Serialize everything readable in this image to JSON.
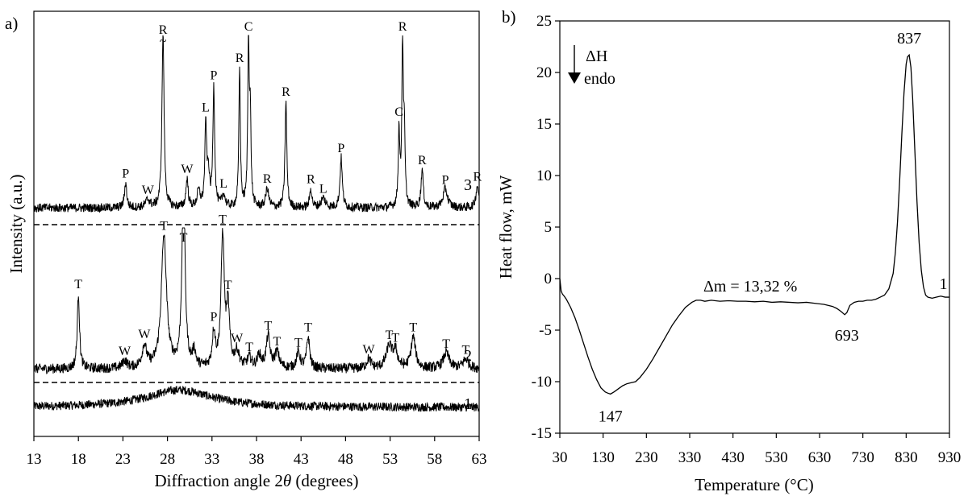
{
  "chart_data": [
    {
      "type": "line",
      "panel_label": "a)",
      "xlabel_prefix": "Diffraction angle 2",
      "xlabel_symbol": "θ",
      "xlabel_suffix": " (degrees)",
      "ylabel": "Intensity (a.u.)",
      "xlim": [
        13,
        63
      ],
      "xticks": [
        13,
        18,
        23,
        28,
        33,
        38,
        43,
        48,
        53,
        58,
        63
      ],
      "y_ticks_shown": false,
      "separators": "dashed",
      "break_marker": "~",
      "series": [
        {
          "name": "1",
          "offset": 0,
          "baseline": 0.5,
          "peaks": [
            [
              29.3,
              2.8,
              4.5
            ]
          ],
          "noise": 0.7
        },
        {
          "name": "2",
          "offset": 12,
          "baseline": 1.0,
          "peaks": [
            [
              18.0,
              12.0,
              0.15
            ],
            [
              23.2,
              1.2,
              0.3
            ],
            [
              25.4,
              3.5,
              0.3
            ],
            [
              27.6,
              21.0,
              0.35
            ],
            [
              29.8,
              31.0,
              0.2
            ],
            [
              31.0,
              2.5,
              0.2
            ],
            [
              33.2,
              5.5,
              0.2
            ],
            [
              34.2,
              21.0,
              0.22
            ],
            [
              34.8,
              9.0,
              0.2
            ],
            [
              35.8,
              2.5,
              0.3
            ],
            [
              37.2,
              1.5,
              0.3
            ],
            [
              38.3,
              2.0,
              0.25
            ],
            [
              39.3,
              5.0,
              0.25
            ],
            [
              40.3,
              2.5,
              0.3
            ],
            [
              42.7,
              2.5,
              0.25
            ],
            [
              43.8,
              5.0,
              0.2
            ],
            [
              50.6,
              1.5,
              0.3
            ],
            [
              52.9,
              3.5,
              0.4
            ],
            [
              53.6,
              2.5,
              0.3
            ],
            [
              55.6,
              5.0,
              0.3
            ],
            [
              59.3,
              2.5,
              0.4
            ],
            [
              61.5,
              1.5,
              0.4
            ]
          ],
          "noise": 0.8
        },
        {
          "name": "3",
          "offset": 27,
          "baseline": 1.0,
          "peaks": [
            [
              23.3,
              4.0,
              0.15
            ],
            [
              25.8,
              1.2,
              0.3
            ],
            [
              27.5,
              28.0,
              0.14
            ],
            [
              30.2,
              4.5,
              0.15
            ],
            [
              31.5,
              2.5,
              0.2
            ],
            [
              32.3,
              13.0,
              0.12
            ],
            [
              32.6,
              5.0,
              0.15
            ],
            [
              33.2,
              19.0,
              0.12
            ],
            [
              34.3,
              2.0,
              0.2
            ],
            [
              36.1,
              22.0,
              0.1
            ],
            [
              37.1,
              26.0,
              0.1
            ],
            [
              37.3,
              13.0,
              0.1
            ],
            [
              39.2,
              3.0,
              0.2
            ],
            [
              41.3,
              17.0,
              0.12
            ],
            [
              44.1,
              3.0,
              0.15
            ],
            [
              45.5,
              1.5,
              0.3
            ],
            [
              47.5,
              8.0,
              0.15
            ],
            [
              54.0,
              12.0,
              0.1
            ],
            [
              54.4,
              26.0,
              0.1
            ],
            [
              54.6,
              10.0,
              0.1
            ],
            [
              56.6,
              6.0,
              0.15
            ],
            [
              59.2,
              3.0,
              0.3
            ],
            [
              62.8,
              3.5,
              0.2
            ]
          ],
          "noise": 0.7
        }
      ],
      "peak_labels": [
        {
          "series": "3",
          "label": "P",
          "x": 23.3
        },
        {
          "series": "3",
          "label": "W",
          "x": 25.8
        },
        {
          "series": "3",
          "label": "R",
          "x": 27.5
        },
        {
          "series": "3",
          "label": "W",
          "x": 30.2
        },
        {
          "series": "3",
          "label": "L",
          "x": 32.3
        },
        {
          "series": "3",
          "label": "P",
          "x": 33.2
        },
        {
          "series": "3",
          "label": "L",
          "x": 34.3
        },
        {
          "series": "3",
          "label": "R",
          "x": 36.1
        },
        {
          "series": "3",
          "label": "C",
          "x": 37.1
        },
        {
          "series": "3",
          "label": "R",
          "x": 39.2
        },
        {
          "series": "3",
          "label": "R",
          "x": 41.3
        },
        {
          "series": "3",
          "label": "R",
          "x": 44.1
        },
        {
          "series": "3",
          "label": "L",
          "x": 45.5
        },
        {
          "series": "3",
          "label": "P",
          "x": 47.5
        },
        {
          "series": "3",
          "label": "C",
          "x": 54.0
        },
        {
          "series": "3",
          "label": "R",
          "x": 54.4
        },
        {
          "series": "3",
          "label": "R",
          "x": 56.6
        },
        {
          "series": "3",
          "label": "P",
          "x": 59.2
        },
        {
          "series": "3",
          "label": "R",
          "x": 62.8
        },
        {
          "series": "2",
          "label": "T",
          "x": 18.0
        },
        {
          "series": "2",
          "label": "W",
          "x": 23.2
        },
        {
          "series": "2",
          "label": "W",
          "x": 25.4
        },
        {
          "series": "2",
          "label": "T",
          "x": 27.6
        },
        {
          "series": "2",
          "label": "T",
          "x": 29.8
        },
        {
          "series": "2",
          "label": "P",
          "x": 33.2
        },
        {
          "series": "2",
          "label": "T",
          "x": 34.2
        },
        {
          "series": "2",
          "label": "T",
          "x": 34.8
        },
        {
          "series": "2",
          "label": "W",
          "x": 35.8
        },
        {
          "series": "2",
          "label": "T",
          "x": 37.2
        },
        {
          "series": "2",
          "label": "T",
          "x": 39.3
        },
        {
          "series": "2",
          "label": "T",
          "x": 40.3
        },
        {
          "series": "2",
          "label": "T",
          "x": 42.7
        },
        {
          "series": "2",
          "label": "T",
          "x": 43.8
        },
        {
          "series": "2",
          "label": "W",
          "x": 50.6
        },
        {
          "series": "2",
          "label": "T",
          "x": 52.9
        },
        {
          "series": "2",
          "label": "T",
          "x": 53.6
        },
        {
          "series": "2",
          "label": "T",
          "x": 55.6
        },
        {
          "series": "2",
          "label": "T",
          "x": 59.3
        },
        {
          "series": "2",
          "label": "T",
          "x": 61.5
        }
      ]
    },
    {
      "type": "line",
      "panel_label": "b)",
      "xlabel": "Temperature (°C)",
      "ylabel": "Heat flow, mW",
      "xlim": [
        30,
        930
      ],
      "ylim": [
        -15,
        25
      ],
      "xticks": [
        30,
        130,
        230,
        330,
        430,
        530,
        630,
        730,
        830,
        930
      ],
      "yticks": [
        -15,
        -10,
        -5,
        0,
        5,
        10,
        15,
        20,
        25
      ],
      "legend": {
        "symbol": "ΔH",
        "text": "endo",
        "placement": "top-left"
      },
      "series": [
        {
          "name": "1",
          "x": [
            30,
            33,
            36,
            40,
            45,
            55,
            65,
            75,
            85,
            95,
            105,
            115,
            125,
            135,
            140,
            147,
            155,
            165,
            175,
            185,
            195,
            205,
            215,
            230,
            245,
            260,
            275,
            290,
            305,
            320,
            335,
            345,
            355,
            365,
            380,
            400,
            420,
            440,
            460,
            480,
            500,
            520,
            540,
            560,
            580,
            600,
            620,
            640,
            660,
            670,
            680,
            688,
            693,
            700,
            710,
            720,
            730,
            740,
            750,
            760,
            770,
            780,
            790,
            800,
            805,
            810,
            815,
            820,
            825,
            830,
            833,
            837,
            841,
            845,
            850,
            855,
            860,
            865,
            870,
            875,
            880,
            890,
            900,
            910,
            920,
            930
          ],
          "y": [
            0.0,
            -1.2,
            -1.5,
            -1.7,
            -2.0,
            -2.8,
            -3.8,
            -5.0,
            -6.3,
            -7.6,
            -8.8,
            -9.8,
            -10.6,
            -11.0,
            -11.1,
            -11.2,
            -11.0,
            -10.7,
            -10.4,
            -10.2,
            -10.1,
            -10.0,
            -9.6,
            -8.8,
            -7.8,
            -6.7,
            -5.6,
            -4.5,
            -3.6,
            -2.8,
            -2.3,
            -2.1,
            -2.1,
            -2.2,
            -2.1,
            -2.2,
            -2.15,
            -2.2,
            -2.2,
            -2.25,
            -2.2,
            -2.3,
            -2.25,
            -2.3,
            -2.35,
            -2.3,
            -2.4,
            -2.5,
            -2.7,
            -2.9,
            -3.2,
            -3.5,
            -3.3,
            -2.6,
            -2.3,
            -2.2,
            -2.2,
            -2.1,
            -2.1,
            -2.0,
            -1.8,
            -1.6,
            -1.0,
            0.5,
            2.5,
            5.5,
            9.5,
            14.0,
            18.0,
            20.8,
            21.5,
            21.7,
            20.5,
            17.5,
            12.5,
            7.5,
            3.5,
            0.8,
            -0.8,
            -1.6,
            -1.8,
            -1.9,
            -1.8,
            -1.7,
            -1.8,
            -1.8
          ]
        }
      ],
      "annotations": [
        {
          "text": "837",
          "x": 837,
          "y": 21.7
        },
        {
          "text": "693",
          "x": 693,
          "y": -3.5
        },
        {
          "text": "147",
          "x": 147,
          "y": -11.2
        },
        {
          "text": "Δm = 13,32 %",
          "x": 470,
          "y": -2.1
        },
        {
          "text": "1",
          "x": 890,
          "y": -1.8
        }
      ]
    }
  ]
}
